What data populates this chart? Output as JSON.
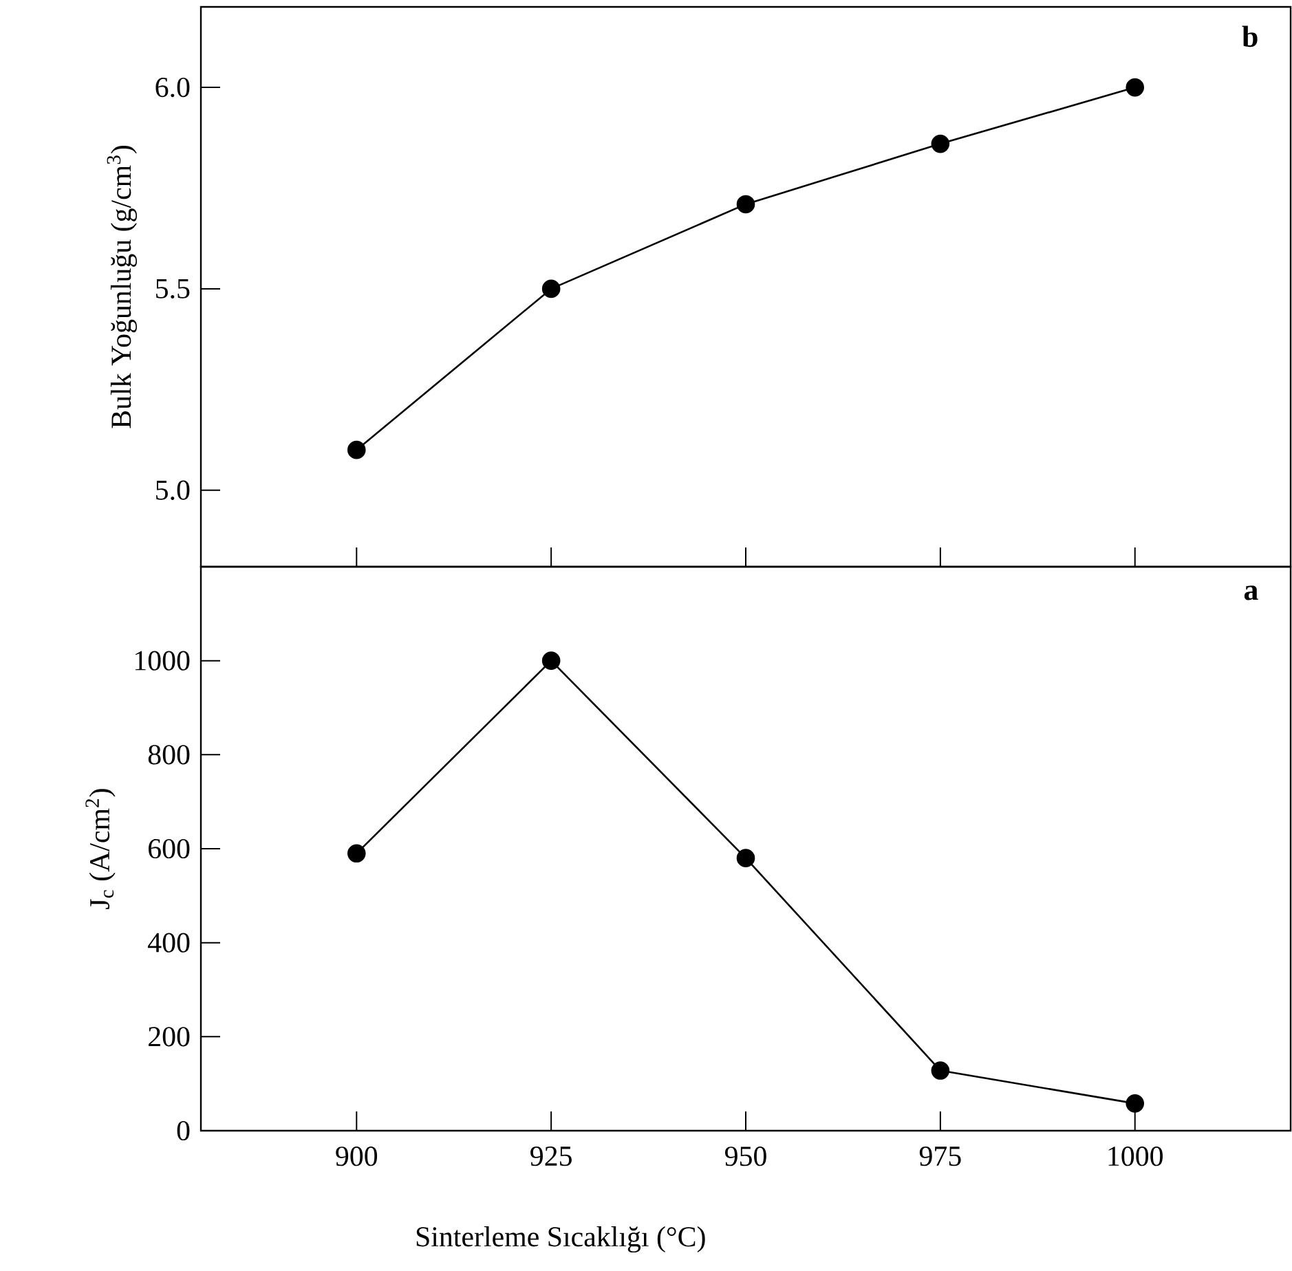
{
  "chart_data": [
    {
      "type": "line",
      "x": [
        900,
        925,
        950,
        975,
        1000
      ],
      "values": [
        5.1,
        5.5,
        5.71,
        5.86,
        6.0
      ],
      "color": "#000000",
      "marker": "circle",
      "line_style": "solid",
      "ylabel": "Bulk Yoğunluğu (g/cm$^{3}$)",
      "annotations": [
        "b"
      ],
      "tick_labels": "y",
      "xlim": [
        880,
        1020
      ],
      "xticks": [
        900,
        925,
        950,
        975,
        1000
      ],
      "ylim": [
        4.81,
        6.2
      ],
      "yticks": [
        {
          "value": 5.0,
          "label": "5.0"
        },
        {
          "value": 5.5,
          "label": "5.5"
        },
        {
          "value": 6.0,
          "label": "6.0"
        }
      ]
    },
    {
      "type": "line",
      "x": [
        900,
        925,
        950,
        975,
        1000
      ],
      "values": [
        590,
        1000,
        580,
        128,
        58
      ],
      "color": "#000000",
      "marker": "circle",
      "line_style": "solid",
      "ylabel": "J$_{c}$ (A/cm$^{2}$)",
      "xlabel": "Sinterleme Sıcaklığı (°C)",
      "annotations": [
        "a"
      ],
      "xlim": [
        880,
        1020
      ],
      "xticks": [
        900,
        925,
        950,
        975,
        1000
      ],
      "ylim": [
        0,
        1200
      ],
      "yticks": [
        0,
        200,
        400,
        600,
        800,
        1000
      ]
    }
  ]
}
